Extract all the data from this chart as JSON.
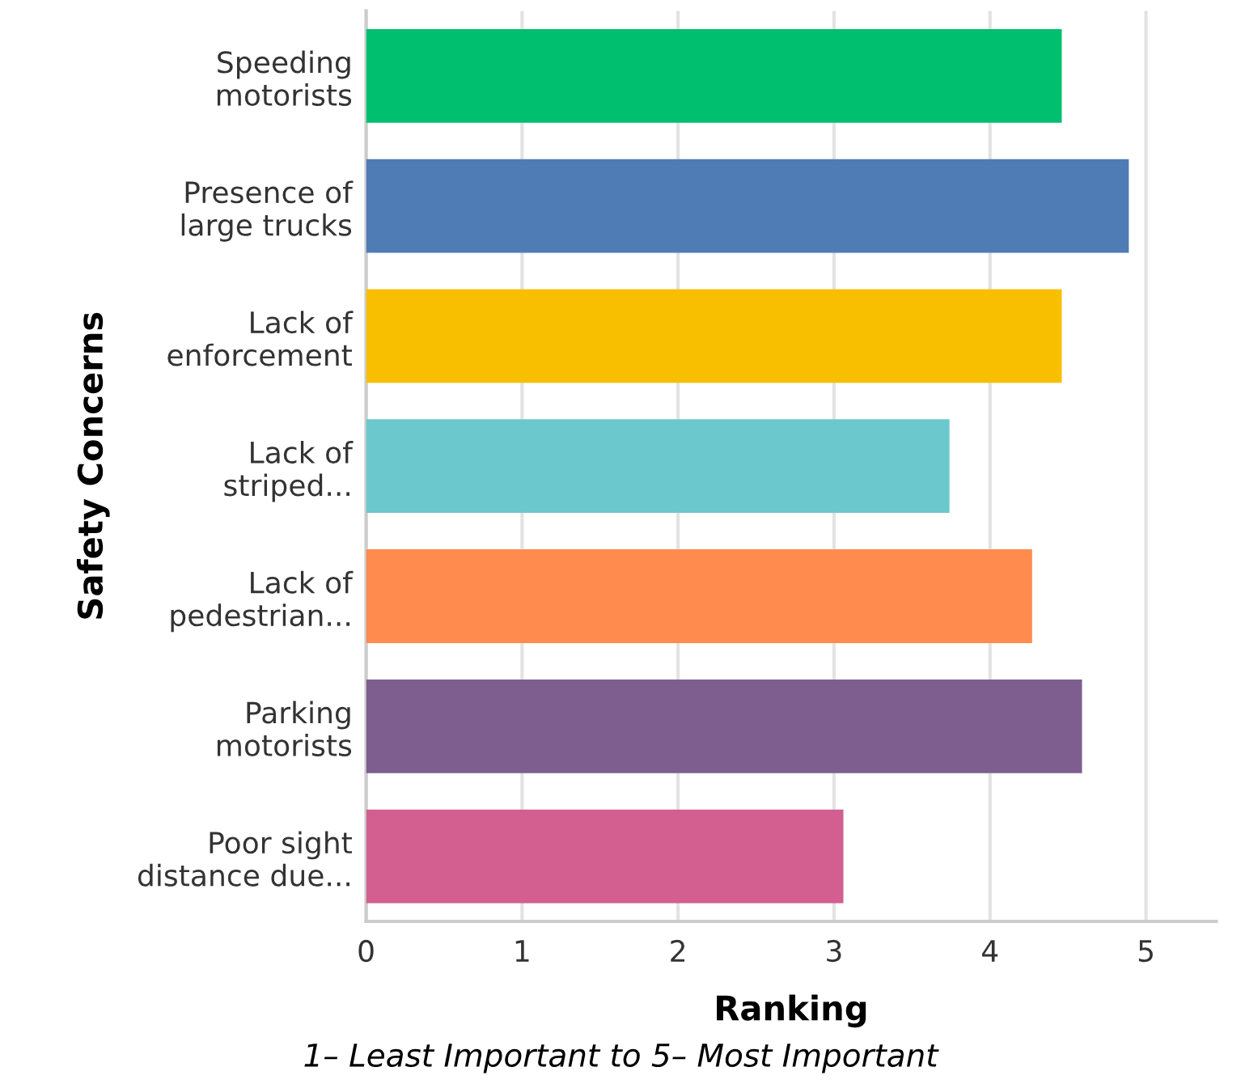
{
  "chart_data": {
    "type": "bar",
    "orientation": "horizontal",
    "xlabel": "Ranking",
    "ylabel": "Safety Concerns",
    "annotations": [
      "1– Least Important to 5– Most Important"
    ],
    "categories": [
      "Speeding\nmotorists",
      "Presence of\nlarge trucks",
      "Lack of\nenforcement",
      "Lack of\nstriped...",
      "Lack of\npedestrian...",
      "Parking\nmotorists",
      "Poor sight\ndistance due..."
    ],
    "values": [
      4.46,
      4.89,
      4.46,
      3.74,
      4.27,
      4.59,
      3.06
    ],
    "colors": [
      "#00bf6f",
      "#507cb6",
      "#f7bf00",
      "#6bc8cd",
      "#ff8b4f",
      "#7e5e8f",
      "#d25f90"
    ],
    "xlim": [
      0,
      5.45
    ],
    "xticks": [
      0,
      1,
      2,
      3,
      4,
      5
    ],
    "grid": "x"
  }
}
